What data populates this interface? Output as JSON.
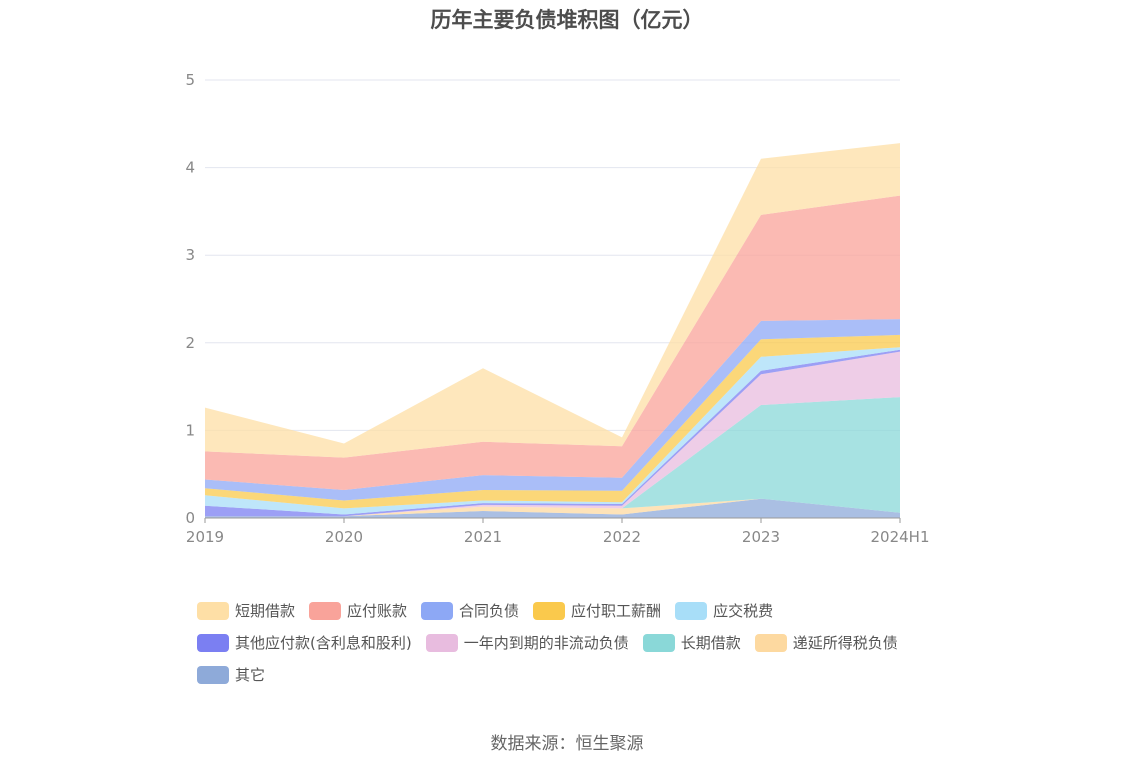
{
  "chart_data": {
    "type": "area",
    "stacked": true,
    "title": "历年主要负债堆积图（亿元）",
    "x": [
      "2019",
      "2020",
      "2021",
      "2022",
      "2023",
      "2024H1"
    ],
    "ylim": [
      0,
      5
    ],
    "yticks": [
      0,
      1,
      2,
      3,
      4,
      5
    ],
    "grid": true,
    "legend_position": "bottom",
    "series": [
      {
        "name": "其它",
        "color": "#8eaad9",
        "values": [
          0.02,
          0.02,
          0.08,
          0.04,
          0.22,
          0.06
        ]
      },
      {
        "name": "递延所得税负债",
        "color": "#fdd9a0",
        "values": [
          0.0,
          0.0,
          0.05,
          0.07,
          0.0,
          0.0
        ]
      },
      {
        "name": "长期借款",
        "color": "#8ad8d8",
        "values": [
          0.0,
          0.0,
          0.0,
          0.0,
          1.07,
          1.32
        ]
      },
      {
        "name": "一年内到期的非流动负债",
        "color": "#e8bcdf",
        "values": [
          0.0,
          0.0,
          0.02,
          0.03,
          0.35,
          0.52
        ]
      },
      {
        "name": "其他应付款(含利息和股利)",
        "color": "#7b7ff2",
        "values": [
          0.12,
          0.02,
          0.02,
          0.02,
          0.04,
          0.02
        ]
      },
      {
        "name": "应交税费",
        "color": "#a8def8",
        "values": [
          0.12,
          0.07,
          0.03,
          0.02,
          0.16,
          0.03
        ]
      },
      {
        "name": "应付职工薪酬",
        "color": "#fac94c",
        "values": [
          0.08,
          0.09,
          0.12,
          0.13,
          0.2,
          0.14
        ]
      },
      {
        "name": "合同负债",
        "color": "#8da8f5",
        "values": [
          0.1,
          0.12,
          0.17,
          0.15,
          0.21,
          0.18
        ]
      },
      {
        "name": "应付账款",
        "color": "#f9a39a",
        "values": [
          0.32,
          0.37,
          0.38,
          0.36,
          1.21,
          1.41
        ]
      },
      {
        "name": "短期借款",
        "color": "#fedfa6",
        "values": [
          0.5,
          0.16,
          0.84,
          0.1,
          0.64,
          0.6
        ]
      }
    ],
    "legend_order": [
      "短期借款",
      "应付账款",
      "合同负债",
      "应付职工薪酬",
      "应交税费",
      "其他应付款(含利息和股利)",
      "一年内到期的非流动负债",
      "长期借款",
      "递延所得税负债",
      "其它"
    ]
  },
  "source_text": "数据来源：恒生聚源"
}
